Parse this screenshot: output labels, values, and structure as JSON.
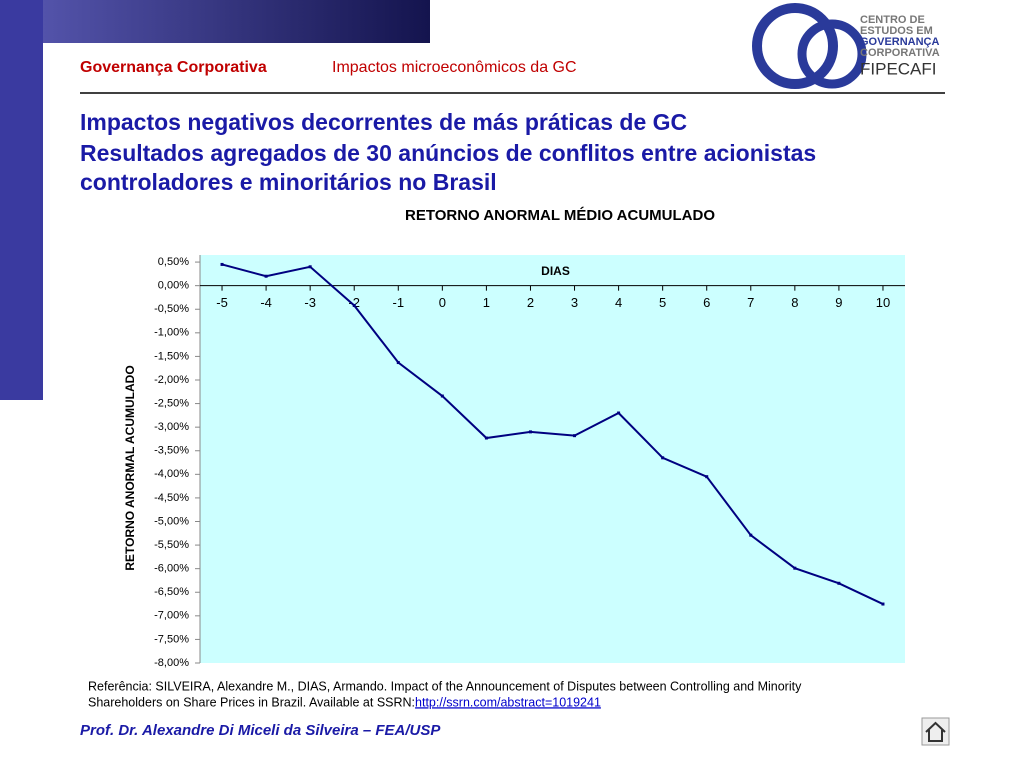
{
  "header": {
    "section": "Governança Corporativa",
    "topic": "Impactos microeconômicos da GC"
  },
  "logo": {
    "lines": [
      "CENTRO DE",
      "ESTUDOS EM",
      "GOVERNANÇA",
      "CORPORATIVA",
      "FIPECAFI"
    ]
  },
  "title": {
    "lines": [
      "Impactos negativos decorrentes de más práticas de GC",
      "Resultados agregados de 30 anúncios de conflitos entre acionistas",
      "controladores e minoritários no Brasil"
    ]
  },
  "chart_data": {
    "type": "line",
    "title": "RETORNO ANORMAL MÉDIO ACUMULADO",
    "x_label": "DIAS",
    "y_label": "RETORNO ANORMAL ACUMULADO",
    "x": [
      -5,
      -4,
      -3,
      -2,
      -1,
      0,
      1,
      2,
      3,
      4,
      5,
      6,
      7,
      8,
      9,
      10
    ],
    "series": [
      {
        "color": "#000080",
        "values": [
          0.45,
          0.2,
          0.4,
          -0.42,
          -1.63,
          -2.34,
          -3.23,
          -3.1,
          -3.18,
          -2.7,
          -3.65,
          -4.05,
          -5.29,
          -5.99,
          -6.31,
          -6.75
        ]
      }
    ],
    "xlim": [
      -5.5,
      10.5
    ],
    "ylim": [
      -8,
      0.65
    ],
    "yticks": [
      {
        "value": 0.5,
        "label": "0,50%"
      },
      {
        "value": 0,
        "label": "0,00%"
      },
      {
        "value": -0.5,
        "label": "-0,50%"
      },
      {
        "value": -1,
        "label": "-1,00%"
      },
      {
        "value": -1.5,
        "label": "-1,50%"
      },
      {
        "value": -2,
        "label": "-2,00%"
      },
      {
        "value": -2.5,
        "label": "-2,50%"
      },
      {
        "value": -3,
        "label": "-3,00%"
      },
      {
        "value": -3.5,
        "label": "-3,50%"
      },
      {
        "value": -4,
        "label": "-4,00%"
      },
      {
        "value": -4.5,
        "label": "-4,50%"
      },
      {
        "value": -5,
        "label": "-5,00%"
      },
      {
        "value": -5.5,
        "label": "-5,50%"
      },
      {
        "value": -6,
        "label": "-6,00%"
      },
      {
        "value": -6.5,
        "label": "-6,50%"
      },
      {
        "value": -7,
        "label": "-7,00%"
      },
      {
        "value": -7.5,
        "label": "-7,50%"
      },
      {
        "value": -8,
        "label": "-8,00%"
      }
    ],
    "plot_background": "#ccffff",
    "grid": false
  },
  "reference": {
    "lines": [
      "Referência: SILVEIRA, Alexandre M., DIAS, Armando. Impact of the Announcement of Disputes between Controlling and Minority",
      "Shareholders on Share Prices in Brazil. Available at SSRN: "
    ],
    "link": "http://ssrn.com/abstract=1019241"
  },
  "footer": {
    "author": "Prof. Dr. Alexandre Di Miceli da Silveira – FEA/USP"
  }
}
